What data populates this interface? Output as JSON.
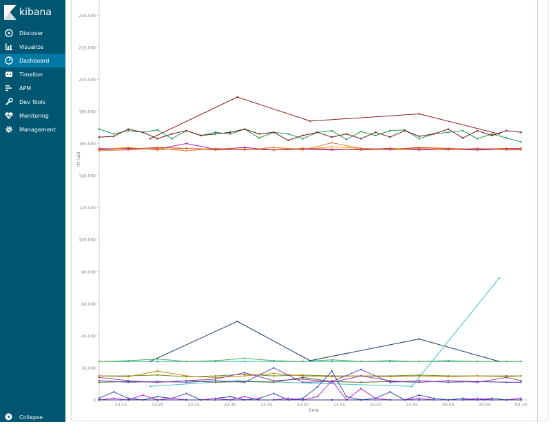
{
  "app": {
    "brand": "kibana"
  },
  "sidebar": {
    "items": [
      {
        "label": "Discover",
        "icon": "compass-icon"
      },
      {
        "label": "Visualize",
        "icon": "bar-chart-icon"
      },
      {
        "label": "Dashboard",
        "icon": "dashboard-icon",
        "active": true
      },
      {
        "label": "Timelion",
        "icon": "timelion-icon"
      },
      {
        "label": "APM",
        "icon": "apm-icon"
      },
      {
        "label": "Dev Tools",
        "icon": "wrench-icon"
      },
      {
        "label": "Monitoring",
        "icon": "heartbeat-icon"
      },
      {
        "label": "Management",
        "icon": "gear-icon"
      }
    ],
    "collapse_label": "Collapse"
  },
  "colors": {
    "sidebar": "#005571",
    "active": "#0079a5"
  },
  "chart_data": {
    "type": "line",
    "xlabel": "time",
    "ylabel": "rtt (us)",
    "ylim": [
      0,
      250000
    ],
    "yticks": [
      "0",
      "20,000",
      "40,000",
      "60,000",
      "80,000",
      "100,000",
      "120,000",
      "140,000",
      "160,000",
      "180,000",
      "200,000",
      "220,000",
      "240,000"
    ],
    "xticks": [
      "23:15",
      "23:20",
      "23:25",
      "23:30",
      "23:35",
      "23:40",
      "23:45",
      "23:50",
      "23:55",
      "00:00",
      "00:05",
      "00:10"
    ],
    "xlim_minutes": [
      -48,
      11
    ],
    "series": [
      {
        "color": "#8b1a1a",
        "x": [
          -41,
          -29,
          -19,
          -4,
          7
        ],
        "y": [
          163000,
          189000,
          174000,
          178500,
          166000
        ]
      },
      {
        "color": "#1a9850",
        "x": [
          -48,
          -46,
          -44,
          -42,
          -40,
          -38,
          -36,
          -34,
          -32,
          -30,
          -28,
          -26,
          -24,
          -22,
          -20,
          -18,
          -16,
          -14,
          -12,
          -10,
          -8,
          -6,
          -4,
          -2,
          0,
          2,
          4,
          6,
          8,
          10
        ],
        "y": [
          169000,
          166000,
          168000,
          167000,
          168500,
          163000,
          168000,
          165000,
          167000,
          166000,
          169000,
          163500,
          167000,
          166000,
          163000,
          167000,
          168000,
          162500,
          167500,
          165000,
          168000,
          168500,
          163000,
          166000,
          167000,
          168000,
          163000,
          166000,
          163500,
          161000
        ]
      },
      {
        "color": "#6b1a1a",
        "x": [
          -48,
          -46,
          -44,
          -42,
          -40,
          -38,
          -36,
          -34,
          -32,
          -30,
          -28,
          -26,
          -24,
          -22,
          -20,
          -18,
          -16,
          -14,
          -12,
          -10,
          -8,
          -6,
          -4,
          -2,
          0,
          2,
          4,
          6,
          8,
          10
        ],
        "y": [
          164000,
          164500,
          169000,
          167000,
          163000,
          166000,
          168000,
          165000,
          166000,
          167000,
          169000,
          166000,
          167000,
          162000,
          165000,
          167000,
          164000,
          166000,
          163000,
          167000,
          164000,
          168000,
          164500,
          166000,
          169000,
          163500,
          168000,
          165000,
          168000,
          167000
        ]
      },
      {
        "color": "#e6a000",
        "x": [
          -48,
          -44,
          -40,
          -36,
          -32,
          -28,
          -24,
          -20,
          -16,
          -12,
          -8,
          -4,
          0,
          4,
          8,
          10
        ],
        "y": [
          156500,
          157500,
          156000,
          157000,
          156500,
          156000,
          157500,
          156500,
          158000,
          157000,
          156000,
          156500,
          157000,
          156500,
          157000,
          157000
        ]
      },
      {
        "color": "#a020c0",
        "x": [
          -48,
          -44,
          -40,
          -36,
          -32,
          -28,
          -24,
          -20,
          -16,
          -12,
          -8,
          -4,
          0,
          4,
          8,
          10
        ],
        "y": [
          156000,
          157000,
          156500,
          160000,
          156500,
          157500,
          156000,
          156500,
          156000,
          156500,
          157000,
          156000,
          156500,
          156000,
          156500,
          156500
        ]
      },
      {
        "color": "#e07b39",
        "x": [
          -48,
          -44,
          -40,
          -36,
          -32,
          -28,
          -24,
          -20,
          -16,
          -12,
          -8,
          -4,
          0,
          4,
          8,
          10
        ],
        "y": [
          155500,
          156000,
          157000,
          155500,
          157000,
          156000,
          157500,
          156000,
          160500,
          157000,
          156500,
          157000,
          156000,
          157000,
          156000,
          156000
        ]
      },
      {
        "color": "#d94a1e",
        "x": [
          -48,
          -44,
          -40,
          -36,
          -32,
          -28,
          -24,
          -20,
          -16,
          -12,
          -8,
          -4,
          0,
          4,
          8,
          10
        ],
        "y": [
          157000,
          156500,
          157500,
          157000,
          156000,
          156500,
          156000,
          157000,
          156500,
          156000,
          156500,
          157500,
          157000,
          156500,
          157000,
          157000
        ]
      },
      {
        "color": "#17365d",
        "x": [
          -41,
          -29,
          -19,
          -4,
          7
        ],
        "y": [
          24000,
          49000,
          24500,
          38000,
          24000
        ]
      },
      {
        "color": "#26b5a8",
        "x": [
          -48,
          -44,
          -40,
          -36,
          -32,
          -28,
          -24,
          -20,
          -16,
          -12,
          -8,
          -4,
          0,
          4,
          8,
          10
        ],
        "y": [
          24000,
          24000,
          24000,
          24000,
          24000,
          24000,
          24000,
          24000,
          24000,
          24000,
          24000,
          24000,
          24000,
          24000,
          24000,
          24000
        ]
      },
      {
        "color": "#40c0b8",
        "x": [
          -41,
          -29,
          -19,
          -5,
          7
        ],
        "y": [
          8500,
          12000,
          10500,
          8500,
          76000
        ]
      },
      {
        "color": "#4caf50",
        "x": [
          -48,
          -44,
          -40,
          -36,
          -32,
          -28,
          -24,
          -20,
          -16,
          -12,
          -8,
          -4,
          0,
          4,
          8,
          10
        ],
        "y": [
          24000,
          24500,
          25500,
          24000,
          24500,
          26000,
          24500,
          24000,
          25000,
          24000,
          24500,
          24000,
          24500,
          24000,
          24000,
          24000
        ]
      },
      {
        "color": "#6b8e23",
        "x": [
          -48,
          -44,
          -40,
          -36,
          -32,
          -28,
          -24,
          -20,
          -16,
          -12,
          -8,
          -4,
          0,
          4,
          8,
          10
        ],
        "y": [
          15000,
          15000,
          15500,
          14500,
          15000,
          16000,
          15000,
          15500,
          15000,
          15000,
          15000,
          15500,
          15000,
          15000,
          15000,
          15000
        ]
      },
      {
        "color": "#c08000",
        "x": [
          -48,
          -44,
          -40,
          -36,
          -32,
          -28,
          -24,
          -20,
          -16,
          -12,
          -8,
          -4,
          0,
          4,
          8,
          10
        ],
        "y": [
          15000,
          14500,
          18000,
          15000,
          14000,
          15000,
          16500,
          15000,
          14500,
          15000,
          14500,
          15000,
          14500,
          15000,
          14500,
          15000
        ]
      },
      {
        "color": "#556b2f",
        "x": [
          -48,
          -44,
          -40,
          -36,
          -32,
          -28,
          -24,
          -20,
          -16,
          -12,
          -8,
          -4,
          0,
          4,
          8,
          10
        ],
        "y": [
          11000,
          11500,
          11000,
          12000,
          11000,
          11500,
          11000,
          14000,
          11500,
          11000,
          11500,
          11000,
          12000,
          11500,
          11000,
          11000
        ]
      },
      {
        "color": "#5c46c2",
        "x": [
          -48,
          -44,
          -40,
          -36,
          -32,
          -28,
          -24,
          -20,
          -16,
          -12,
          -8,
          -4,
          0,
          4,
          8,
          10
        ],
        "y": [
          12000,
          11000,
          11500,
          11000,
          12000,
          11000,
          20000,
          11000,
          11500,
          19000,
          11000,
          12000,
          11000,
          11500,
          11000,
          11000
        ]
      },
      {
        "color": "#8e44ad",
        "x": [
          -48,
          -44,
          -40,
          -36,
          -32,
          -28,
          -24,
          -20,
          -16,
          -12,
          -8,
          -4,
          0,
          4,
          8,
          10
        ],
        "y": [
          14000,
          12000,
          11000,
          12000,
          13000,
          17000,
          12000,
          13000,
          11000,
          15000,
          12000,
          11000,
          12000,
          11000,
          14000,
          12000
        ]
      },
      {
        "color": "#3949ab",
        "x": [
          -48,
          -46,
          -44,
          -42,
          -40,
          -38,
          -36,
          -34,
          -32,
          -30,
          -28,
          -26,
          -24,
          -22,
          -20,
          -18,
          -16,
          -14,
          -12,
          -10,
          -8,
          -6,
          -4,
          -2,
          0,
          2,
          4,
          6,
          8,
          10
        ],
        "y": [
          1000,
          5000,
          1000,
          0,
          2000,
          1000,
          4000,
          0,
          1000,
          2000,
          0,
          1000,
          4000,
          0,
          1000,
          8000,
          18000,
          2000,
          0,
          1000,
          5000,
          0,
          3000,
          1000,
          0,
          1000,
          0,
          1000,
          0,
          1000
        ]
      },
      {
        "color": "#c026d3",
        "x": [
          -48,
          -46,
          -44,
          -42,
          -40,
          -38,
          -36,
          -34,
          -32,
          -30,
          -28,
          -26,
          -24,
          -22,
          -20,
          -18,
          -16,
          -14,
          -12,
          -10,
          -8,
          -6,
          -4,
          -2,
          0,
          2,
          4,
          6,
          8,
          10
        ],
        "y": [
          0,
          1000,
          0,
          3000,
          0,
          1000,
          0,
          0,
          1000,
          0,
          2000,
          0,
          0,
          1000,
          0,
          2000,
          12000,
          0,
          7000,
          1000,
          0,
          0,
          1000,
          0,
          0,
          0,
          1000,
          0,
          0,
          1000
        ]
      },
      {
        "color": "#283593",
        "x": [
          -48,
          -44,
          -40,
          -36,
          -32,
          -28,
          -24,
          -20,
          -16,
          -12,
          -8,
          -4,
          0,
          4,
          8,
          10
        ],
        "y": [
          0,
          0,
          0,
          0,
          0,
          0,
          0,
          0,
          0,
          0,
          0,
          0,
          0,
          0,
          0,
          0
        ]
      }
    ]
  }
}
